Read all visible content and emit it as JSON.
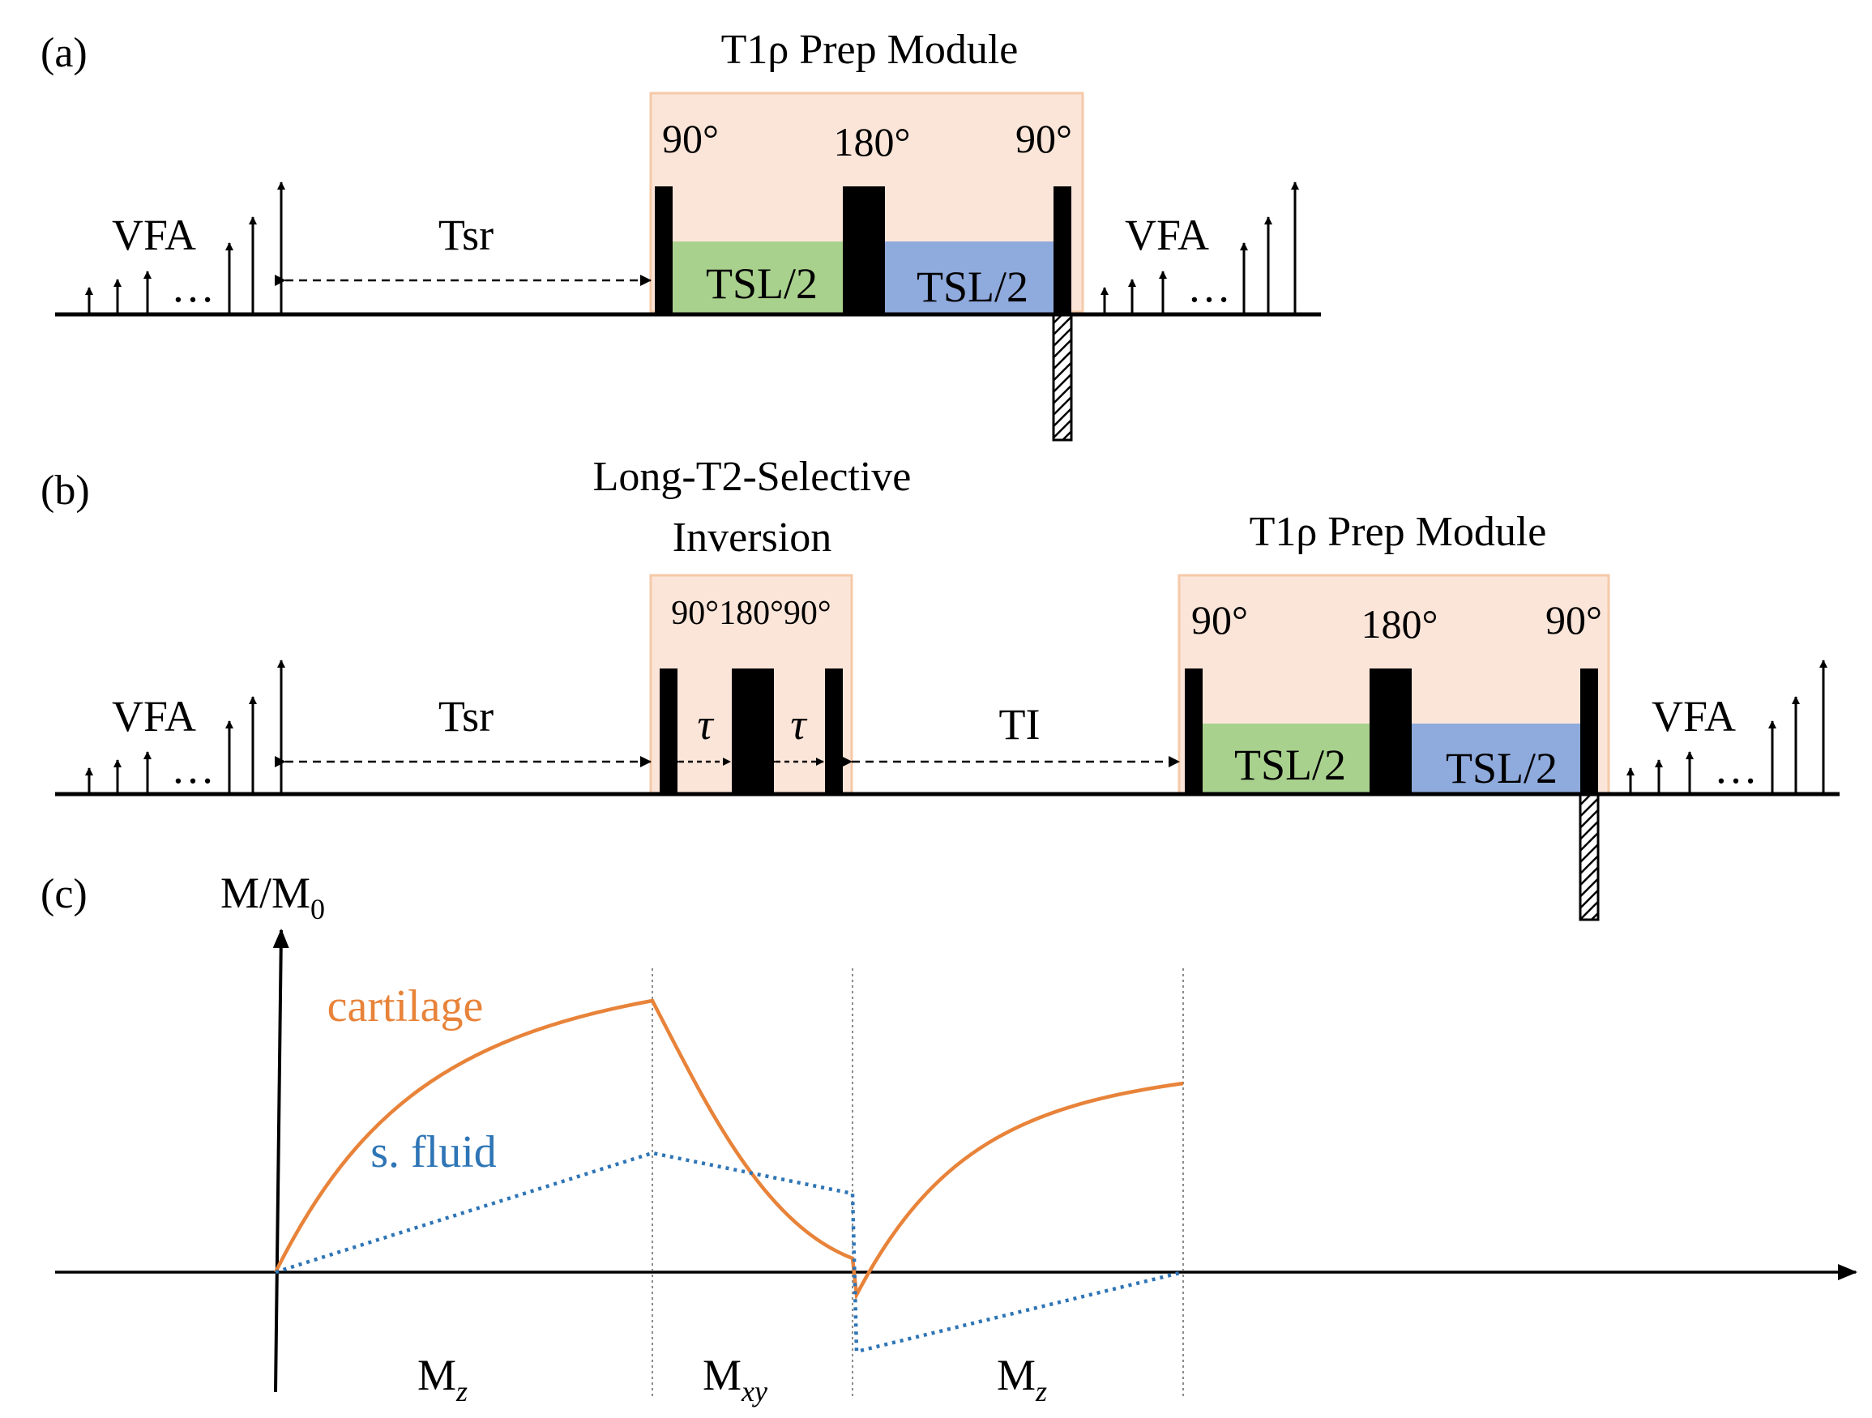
{
  "panel_a": {
    "tag": "(a)",
    "title": "T1ρ Prep Module",
    "vfa_left": "VFA",
    "vfa_right": "VFA",
    "dots_left": "…",
    "dots_right": "…",
    "tsr": "Tsr",
    "pulse_90_left": "90°",
    "pulse_180": "180°",
    "pulse_90_right": "90°",
    "tsl_green": "TSL/2",
    "tsl_blue": "TSL/2"
  },
  "panel_b": {
    "tag": "(b)",
    "inversion_title_line1": "Long-T2-Selective",
    "inversion_title_line2": "Inversion",
    "inv_pulses": "90°180°90°",
    "tau_left": "τ",
    "tau_right": "τ",
    "ti": "TI",
    "tsr": "Tsr",
    "vfa_left": "VFA",
    "vfa_right": "VFA",
    "dots_left": "…",
    "dots_right": "…",
    "prep_title": "T1ρ Prep Module",
    "pulse_90_left": "90°",
    "pulse_180": "180°",
    "pulse_90_right": "90°",
    "tsl_green": "TSL/2",
    "tsl_blue": "TSL/2"
  },
  "panel_c": {
    "tag": "(c)",
    "y_axis_main": "M/M",
    "y_axis_sub": "0",
    "cartilage_label": "cartilage",
    "fluid_label": "s. fluid",
    "seg1_main": "M",
    "seg1_sub": "z",
    "seg2_main": "M",
    "seg2_sub": "xy",
    "seg3_main": "M",
    "seg3_sub": "z"
  },
  "colors": {
    "prep_fill": "#fbe5d9",
    "prep_border": "#f5c9a8",
    "green": "#a9d18e",
    "blue": "#8faadc",
    "cartilage": "#e8833a",
    "fluid": "#2e75b6"
  }
}
